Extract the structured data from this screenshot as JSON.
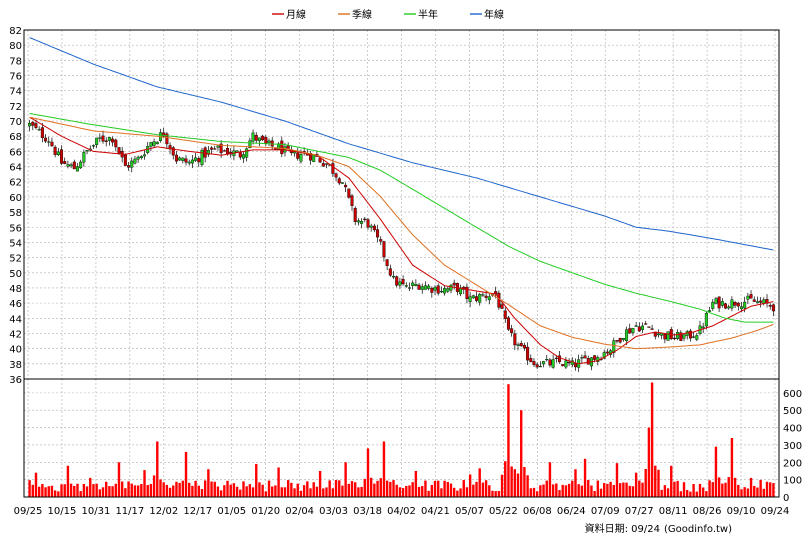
{
  "chart_data": [
    {
      "type": "line",
      "subtype": "candlestick-with-moving-averages",
      "legend_placement": "top-center",
      "series": [
        {
          "name": "月線",
          "color": "#cc0000"
        },
        {
          "name": "季線",
          "color": "#e07020"
        },
        {
          "name": "半年",
          "color": "#22cc22"
        },
        {
          "name": "年線",
          "color": "#1f66cc"
        }
      ],
      "y_ticks": [
        36,
        38,
        40,
        42,
        44,
        46,
        48,
        50,
        52,
        54,
        56,
        58,
        60,
        62,
        64,
        66,
        68,
        70,
        72,
        74,
        76,
        78,
        80,
        82
      ],
      "ylim": [
        36,
        82
      ],
      "grid": true,
      "x_ticks": [
        "09/25",
        "10/15",
        "10/31",
        "11/17",
        "12/02",
        "12/17",
        "01/05",
        "01/20",
        "02/04",
        "03/03",
        "03/18",
        "04/02",
        "04/21",
        "05/07",
        "05/22",
        "06/08",
        "06/24",
        "07/09",
        "07/27",
        "08/11",
        "08/26",
        "09/10",
        "09/24"
      ],
      "candle_up_color": "#22cc22",
      "candle_down_color": "#cc0000",
      "close_path": [
        [
          0,
          69.5
        ],
        [
          3,
          68.5
        ],
        [
          6,
          67.6
        ],
        [
          10,
          64.5
        ],
        [
          14,
          63.8
        ],
        [
          18,
          66.0
        ],
        [
          22,
          67.6
        ],
        [
          26,
          67.8
        ],
        [
          30,
          64.0
        ],
        [
          34,
          65.0
        ],
        [
          38,
          67.2
        ],
        [
          42,
          68.4
        ],
        [
          46,
          65.0
        ],
        [
          50,
          64.5
        ],
        [
          54,
          65.5
        ],
        [
          58,
          66.2
        ],
        [
          62,
          66.0
        ],
        [
          66,
          65.6
        ],
        [
          70,
          68.0
        ],
        [
          74,
          66.8
        ],
        [
          78,
          66.5
        ],
        [
          82,
          65.4
        ],
        [
          86,
          65.8
        ],
        [
          90,
          65.2
        ],
        [
          94,
          64.0
        ],
        [
          98,
          62.0
        ],
        [
          102,
          57.0
        ],
        [
          106,
          56.5
        ],
        [
          110,
          53.5
        ],
        [
          114,
          49.0
        ],
        [
          118,
          48.0
        ],
        [
          122,
          48.5
        ],
        [
          126,
          48.0
        ],
        [
          130,
          47.8
        ],
        [
          134,
          48.0
        ],
        [
          138,
          46.5
        ],
        [
          142,
          47.0
        ],
        [
          146,
          47.2
        ],
        [
          150,
          42.0
        ],
        [
          154,
          39.8
        ],
        [
          158,
          38.2
        ],
        [
          162,
          38.0
        ],
        [
          166,
          38.2
        ],
        [
          170,
          37.8
        ],
        [
          174,
          38.5
        ],
        [
          178,
          39.0
        ],
        [
          182,
          40.0
        ],
        [
          186,
          42.0
        ],
        [
          190,
          43.0
        ],
        [
          194,
          42.8
        ],
        [
          198,
          41.8
        ],
        [
          202,
          41.5
        ],
        [
          206,
          41.6
        ],
        [
          210,
          42.4
        ],
        [
          214,
          46.0
        ],
        [
          218,
          46.0
        ],
        [
          222,
          46.2
        ],
        [
          226,
          46.3
        ],
        [
          230,
          45.9
        ],
        [
          233,
          45.6
        ]
      ],
      "ma_month": [
        [
          0,
          70.5
        ],
        [
          10,
          68.0
        ],
        [
          20,
          66.0
        ],
        [
          30,
          65.6
        ],
        [
          40,
          66.6
        ],
        [
          50,
          66.0
        ],
        [
          60,
          65.5
        ],
        [
          70,
          66.2
        ],
        [
          80,
          66.2
        ],
        [
          90,
          65.5
        ],
        [
          100,
          62.5
        ],
        [
          110,
          57.0
        ],
        [
          120,
          51.0
        ],
        [
          130,
          48.3
        ],
        [
          140,
          47.6
        ],
        [
          146,
          47.2
        ],
        [
          152,
          44.0
        ],
        [
          160,
          40.5
        ],
        [
          166,
          38.8
        ],
        [
          172,
          38.0
        ],
        [
          178,
          38.4
        ],
        [
          184,
          39.8
        ],
        [
          190,
          41.6
        ],
        [
          196,
          42.2
        ],
        [
          202,
          41.8
        ],
        [
          208,
          42.2
        ],
        [
          214,
          43.0
        ],
        [
          220,
          44.3
        ],
        [
          226,
          45.6
        ],
        [
          233,
          46.2
        ]
      ],
      "ma_quarter": [
        [
          0,
          70.5
        ],
        [
          20,
          68.7
        ],
        [
          40,
          68.0
        ],
        [
          60,
          66.8
        ],
        [
          80,
          66.4
        ],
        [
          90,
          65.5
        ],
        [
          100,
          64.0
        ],
        [
          110,
          60.0
        ],
        [
          120,
          55.0
        ],
        [
          130,
          51.0
        ],
        [
          140,
          48.4
        ],
        [
          150,
          45.8
        ],
        [
          160,
          43.0
        ],
        [
          170,
          41.5
        ],
        [
          180,
          40.6
        ],
        [
          190,
          40.0
        ],
        [
          200,
          40.2
        ],
        [
          210,
          40.5
        ],
        [
          220,
          41.4
        ],
        [
          228,
          42.4
        ],
        [
          233,
          43.2
        ]
      ],
      "ma_halfyear": [
        [
          0,
          71.0
        ],
        [
          20,
          69.5
        ],
        [
          40,
          68.2
        ],
        [
          60,
          67.3
        ],
        [
          80,
          66.9
        ],
        [
          100,
          65.2
        ],
        [
          110,
          63.5
        ],
        [
          120,
          61.0
        ],
        [
          130,
          58.5
        ],
        [
          140,
          56.0
        ],
        [
          150,
          53.5
        ],
        [
          160,
          51.5
        ],
        [
          170,
          50.0
        ],
        [
          180,
          48.5
        ],
        [
          190,
          47.3
        ],
        [
          200,
          46.3
        ],
        [
          210,
          45.2
        ],
        [
          218,
          44.0
        ],
        [
          224,
          43.5
        ],
        [
          233,
          43.5
        ]
      ],
      "ma_year": [
        [
          0,
          81.0
        ],
        [
          20,
          77.5
        ],
        [
          40,
          74.5
        ],
        [
          60,
          72.5
        ],
        [
          80,
          70.0
        ],
        [
          100,
          67.0
        ],
        [
          120,
          64.5
        ],
        [
          140,
          62.5
        ],
        [
          160,
          60.0
        ],
        [
          180,
          57.5
        ],
        [
          190,
          56.0
        ],
        [
          200,
          55.5
        ],
        [
          214,
          54.5
        ],
        [
          233,
          53.0
        ]
      ]
    },
    {
      "type": "bar",
      "subtype": "volume",
      "y_ticks": [
        0,
        100,
        200,
        300,
        400,
        500,
        600
      ],
      "ylim": [
        0,
        680
      ],
      "bar_color": "#ff0000",
      "peaks": [
        [
          2,
          140
        ],
        [
          12,
          180
        ],
        [
          19,
          110
        ],
        [
          28,
          200
        ],
        [
          36,
          155
        ],
        [
          40,
          320
        ],
        [
          49,
          260
        ],
        [
          56,
          160
        ],
        [
          71,
          190
        ],
        [
          78,
          170
        ],
        [
          91,
          150
        ],
        [
          99,
          200
        ],
        [
          106,
          280
        ],
        [
          111,
          320
        ],
        [
          121,
          150
        ],
        [
          138,
          130
        ],
        [
          141,
          165
        ],
        [
          150,
          650
        ],
        [
          154,
          500
        ],
        [
          163,
          200
        ],
        [
          171,
          160
        ],
        [
          174,
          220
        ],
        [
          184,
          195
        ],
        [
          190,
          140
        ],
        [
          194,
          400
        ],
        [
          195,
          660
        ],
        [
          201,
          180
        ],
        [
          215,
          290
        ],
        [
          220,
          340
        ],
        [
          226,
          110
        ],
        [
          233,
          80
        ]
      ]
    }
  ],
  "footer": {
    "date_label": "資料日期: 09/24",
    "source_label": "(Goodinfo.tw)"
  }
}
